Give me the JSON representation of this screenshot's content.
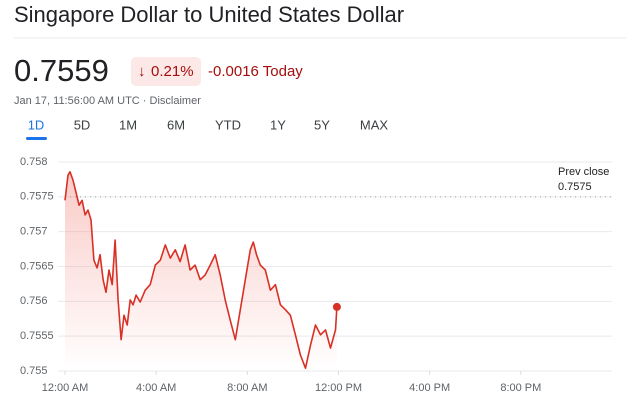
{
  "header": {
    "title": "Singapore Dollar to United States Dollar",
    "price": "0.7559",
    "change_percent": "0.21%",
    "change_today": "-0.0016 Today",
    "timestamp": "Jan 17, 11:56:00 AM UTC · Disclaimer"
  },
  "tabs": [
    "1D",
    "5D",
    "1M",
    "6M",
    "YTD",
    "1Y",
    "5Y",
    "MAX"
  ],
  "chart_data": {
    "type": "line",
    "x": [
      0,
      0.13,
      0.22,
      0.35,
      0.48,
      0.62,
      0.75,
      0.88,
      1.01,
      1.14,
      1.27,
      1.41,
      1.54,
      1.67,
      1.8,
      1.93,
      2.07,
      2.2,
      2.33,
      2.46,
      2.59,
      2.73,
      2.86,
      2.99,
      3.12,
      3.3,
      3.52,
      3.74,
      3.96,
      4.18,
      4.4,
      4.62,
      4.84,
      5.05,
      5.27,
      5.49,
      5.71,
      5.93,
      6.15,
      6.37,
      6.59,
      6.81,
      7.03,
      7.25,
      7.47,
      7.69,
      7.91,
      8.13,
      8.26,
      8.4,
      8.57,
      8.79,
      9.01,
      9.23,
      9.45,
      9.67,
      9.89,
      10.11,
      10.33,
      10.55,
      10.77,
      10.99,
      11.21,
      11.43,
      11.65,
      11.87,
      11.93
    ],
    "series": [
      {
        "color": "#d93025",
        "values": [
          0.75745,
          0.75781,
          0.75786,
          0.75774,
          0.75757,
          0.75738,
          0.75745,
          0.75724,
          0.75731,
          0.75717,
          0.75659,
          0.75648,
          0.75667,
          0.75631,
          0.75613,
          0.75645,
          0.75624,
          0.75688,
          0.75602,
          0.75545,
          0.7558,
          0.75566,
          0.75602,
          0.75595,
          0.75609,
          0.75599,
          0.75616,
          0.75624,
          0.75652,
          0.75659,
          0.75681,
          0.75662,
          0.75674,
          0.75657,
          0.75681,
          0.75645,
          0.75652,
          0.75631,
          0.75638,
          0.75652,
          0.75667,
          0.75638,
          0.75602,
          0.75573,
          0.75545,
          0.75588,
          0.75631,
          0.75674,
          0.75685,
          0.75667,
          0.75652,
          0.75645,
          0.75616,
          0.75624,
          0.75595,
          0.75588,
          0.7558,
          0.75552,
          0.75523,
          0.75504,
          0.75537,
          0.75566,
          0.75552,
          0.75559,
          0.75533,
          0.75559,
          0.75592
        ]
      }
    ],
    "xlim": [
      0,
      24
    ],
    "xticks": [
      {
        "value": 0,
        "label": "12:00 AM"
      },
      {
        "value": 4,
        "label": "4:00 AM"
      },
      {
        "value": 8,
        "label": "8:00 AM"
      },
      {
        "value": 12,
        "label": "12:00 PM"
      },
      {
        "value": 16,
        "label": "4:00 PM"
      },
      {
        "value": 20,
        "label": "8:00 PM"
      }
    ],
    "ylim": [
      0.755,
      0.758
    ],
    "yticks": [
      0.755,
      0.7555,
      0.756,
      0.7565,
      0.757,
      0.7575,
      0.758
    ],
    "grid": true,
    "prev_close": {
      "label": "Prev close",
      "value": 0.7575
    }
  }
}
